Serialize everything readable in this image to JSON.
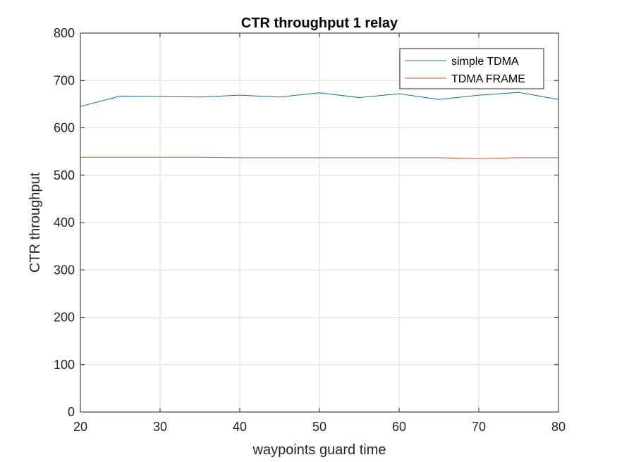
{
  "chart_data": {
    "type": "line",
    "title": "CTR throughput 1 relay",
    "xlabel": "waypoints guard time",
    "ylabel": "CTR throughput",
    "xlim": [
      20,
      80
    ],
    "ylim": [
      0,
      800
    ],
    "xticks": [
      20,
      30,
      40,
      50,
      60,
      70,
      80
    ],
    "yticks": [
      0,
      100,
      200,
      300,
      400,
      500,
      600,
      700,
      800
    ],
    "grid": true,
    "legend_position": "top-right",
    "x": [
      20,
      25,
      30,
      35,
      40,
      45,
      50,
      55,
      60,
      65,
      70,
      75,
      80
    ],
    "series": [
      {
        "name": "simple TDMA",
        "color": "#0072BD",
        "values": [
          645,
          667,
          666,
          665,
          669,
          665,
          674,
          664,
          672,
          660,
          669,
          675,
          660
        ]
      },
      {
        "name": "TDMA FRAME",
        "color": "#D95319",
        "values": [
          538,
          538,
          538,
          538,
          537,
          537,
          537,
          537,
          537,
          537,
          535,
          537,
          537
        ]
      }
    ]
  }
}
